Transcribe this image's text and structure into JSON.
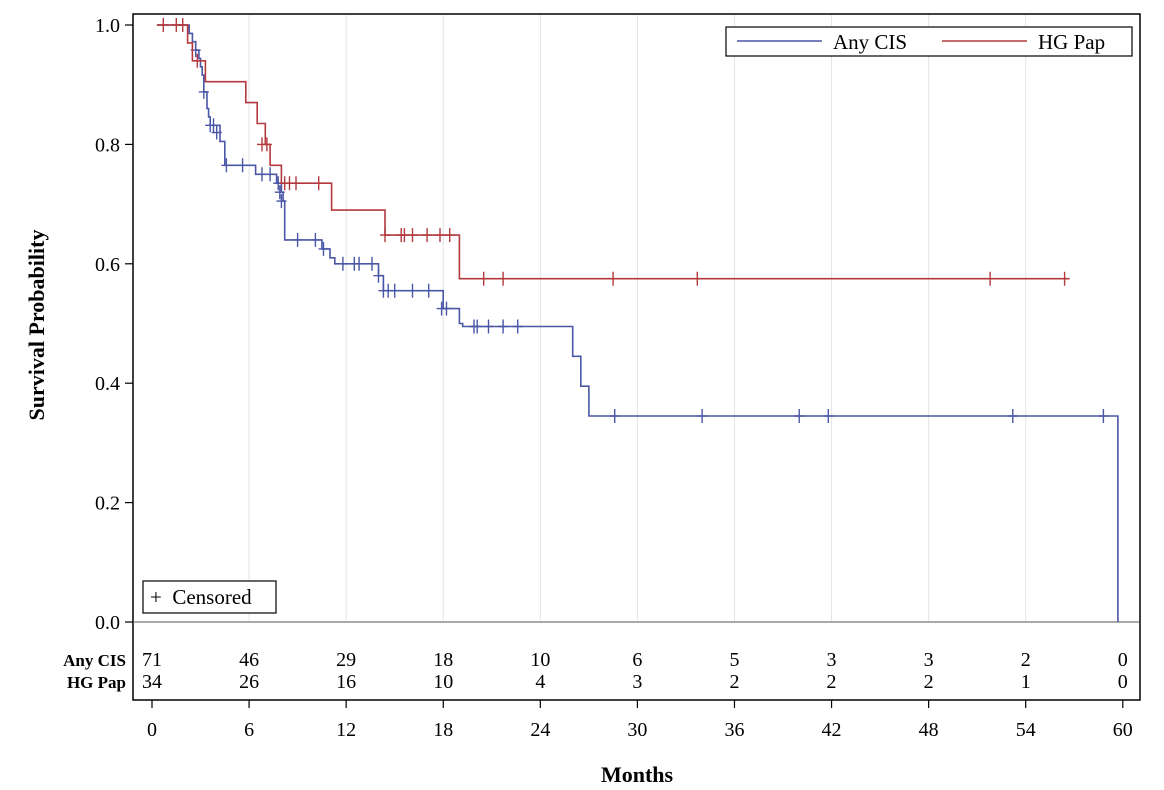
{
  "chart_data": {
    "type": "line",
    "subtype": "kaplan-meier",
    "xlabel": "Months",
    "ylabel": "Survival Probability",
    "xlim": [
      0,
      60
    ],
    "ylim": [
      0,
      1
    ],
    "x_ticks": [
      "0",
      "6",
      "12",
      "18",
      "24",
      "30",
      "36",
      "42",
      "48",
      "54",
      "60"
    ],
    "y_ticks": [
      "0.0",
      "0.2",
      "0.4",
      "0.6",
      "0.8",
      "1.0"
    ],
    "grid": "vertical",
    "legend_position": "top-right",
    "censor_legend_text": "+  Censored",
    "series": [
      {
        "name": "Any CIS",
        "color": "#4a57a6",
        "steps": [
          [
            0.3,
            1.0
          ],
          [
            2.0,
            1.0
          ],
          [
            2.3,
            0.986
          ],
          [
            2.5,
            0.972
          ],
          [
            2.7,
            0.958
          ],
          [
            2.9,
            0.944
          ],
          [
            3.0,
            0.93
          ],
          [
            3.1,
            0.916
          ],
          [
            3.2,
            0.888
          ],
          [
            3.4,
            0.86
          ],
          [
            3.5,
            0.846
          ],
          [
            3.6,
            0.832
          ],
          [
            4.2,
            0.805
          ],
          [
            4.5,
            0.765
          ],
          [
            6.0,
            0.765
          ],
          [
            6.4,
            0.75
          ],
          [
            7.5,
            0.75
          ],
          [
            7.7,
            0.735
          ],
          [
            8.0,
            0.72
          ],
          [
            8.1,
            0.705
          ],
          [
            8.2,
            0.64
          ],
          [
            10.3,
            0.64
          ],
          [
            10.5,
            0.625
          ],
          [
            11.0,
            0.61
          ],
          [
            11.3,
            0.6
          ],
          [
            13.8,
            0.6
          ],
          [
            14.0,
            0.58
          ],
          [
            14.3,
            0.555
          ],
          [
            17.8,
            0.555
          ],
          [
            18.0,
            0.525
          ],
          [
            19.0,
            0.5
          ],
          [
            19.2,
            0.495
          ],
          [
            25.8,
            0.495
          ],
          [
            26.0,
            0.445
          ],
          [
            26.5,
            0.395
          ],
          [
            27.0,
            0.345
          ],
          [
            59.7,
            0.345
          ],
          [
            59.7,
            0.0
          ]
        ],
        "censored": [
          [
            2.7,
            0.958
          ],
          [
            3.2,
            0.888
          ],
          [
            3.6,
            0.832
          ],
          [
            3.8,
            0.832
          ],
          [
            4.0,
            0.82
          ],
          [
            4.6,
            0.765
          ],
          [
            5.6,
            0.765
          ],
          [
            6.8,
            0.75
          ],
          [
            7.3,
            0.75
          ],
          [
            7.8,
            0.735
          ],
          [
            7.9,
            0.72
          ],
          [
            8.0,
            0.705
          ],
          [
            9.0,
            0.64
          ],
          [
            10.1,
            0.64
          ],
          [
            10.6,
            0.625
          ],
          [
            11.8,
            0.6
          ],
          [
            12.5,
            0.6
          ],
          [
            12.8,
            0.6
          ],
          [
            13.6,
            0.6
          ],
          [
            14.0,
            0.58
          ],
          [
            14.3,
            0.555
          ],
          [
            14.6,
            0.555
          ],
          [
            15.0,
            0.555
          ],
          [
            16.1,
            0.555
          ],
          [
            17.1,
            0.555
          ],
          [
            17.9,
            0.525
          ],
          [
            18.2,
            0.525
          ],
          [
            19.9,
            0.495
          ],
          [
            20.1,
            0.495
          ],
          [
            20.8,
            0.495
          ],
          [
            21.7,
            0.495
          ],
          [
            22.6,
            0.495
          ],
          [
            28.6,
            0.345
          ],
          [
            34.0,
            0.345
          ],
          [
            40.0,
            0.345
          ],
          [
            41.8,
            0.345
          ],
          [
            53.2,
            0.345
          ],
          [
            58.8,
            0.345
          ]
        ]
      },
      {
        "name": "HG Pap",
        "color": "#b3393f",
        "steps": [
          [
            0.3,
            1.0
          ],
          [
            2.0,
            1.0
          ],
          [
            2.2,
            0.97
          ],
          [
            2.5,
            0.94
          ],
          [
            3.3,
            0.905
          ],
          [
            5.5,
            0.905
          ],
          [
            5.8,
            0.87
          ],
          [
            6.5,
            0.835
          ],
          [
            7.0,
            0.8
          ],
          [
            7.3,
            0.765
          ],
          [
            8.0,
            0.735
          ],
          [
            10.9,
            0.735
          ],
          [
            11.1,
            0.69
          ],
          [
            14.3,
            0.69
          ],
          [
            14.4,
            0.648
          ],
          [
            19.0,
            0.648
          ],
          [
            19.0,
            0.575
          ],
          [
            56.7,
            0.575
          ]
        ],
        "censored": [
          [
            0.7,
            1.0
          ],
          [
            1.5,
            1.0
          ],
          [
            1.9,
            1.0
          ],
          [
            2.8,
            0.94
          ],
          [
            6.8,
            0.8
          ],
          [
            7.1,
            0.8
          ],
          [
            8.2,
            0.735
          ],
          [
            8.5,
            0.735
          ],
          [
            8.9,
            0.735
          ],
          [
            10.3,
            0.735
          ],
          [
            14.4,
            0.648
          ],
          [
            15.4,
            0.648
          ],
          [
            15.6,
            0.648
          ],
          [
            16.1,
            0.648
          ],
          [
            17.0,
            0.648
          ],
          [
            17.8,
            0.648
          ],
          [
            18.4,
            0.648
          ],
          [
            20.5,
            0.575
          ],
          [
            21.7,
            0.575
          ],
          [
            28.5,
            0.575
          ],
          [
            33.7,
            0.575
          ],
          [
            51.8,
            0.575
          ],
          [
            56.4,
            0.575
          ]
        ]
      }
    ],
    "at_risk": {
      "times": [
        0,
        6,
        12,
        18,
        24,
        30,
        36,
        42,
        48,
        54,
        60
      ],
      "rows": [
        {
          "label": "Any CIS",
          "counts": [
            "71",
            "46",
            "29",
            "18",
            "10",
            "6",
            "5",
            "3",
            "3",
            "2",
            "0"
          ]
        },
        {
          "label": "HG Pap",
          "counts": [
            "34",
            "26",
            "16",
            "10",
            "4",
            "3",
            "2",
            "2",
            "2",
            "1",
            "0"
          ]
        }
      ]
    }
  }
}
